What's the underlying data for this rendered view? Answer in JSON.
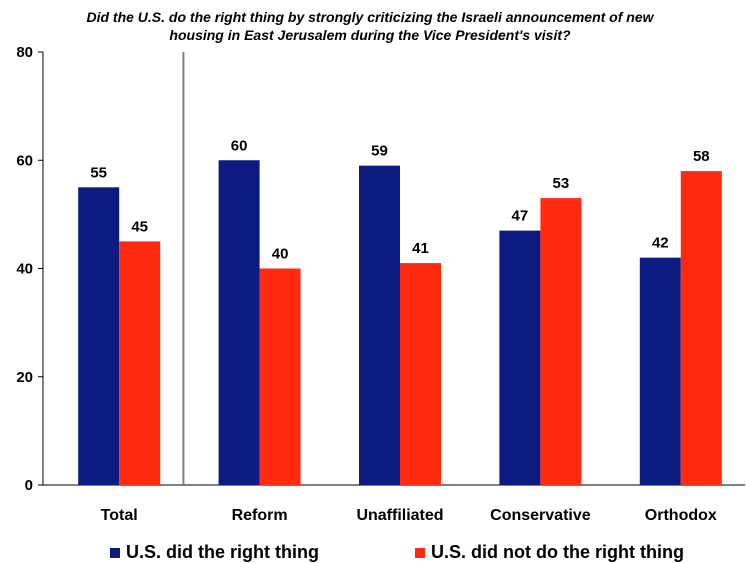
{
  "chart_data": {
    "type": "bar",
    "title_lines": [
      "Did the U.S. do the right thing by strongly criticizing the Israeli announcement of new",
      "housing in East Jerusalem during the Vice President's visit?"
    ],
    "categories": [
      "Total",
      "Reform",
      "Unaffiliated",
      "Conservative",
      "Orthodox"
    ],
    "series": [
      {
        "name": "U.S. did the right thing",
        "values": [
          55,
          60,
          59,
          47,
          42
        ],
        "color": "#0d1a80"
      },
      {
        "name": "U.S. did not do the right thing",
        "values": [
          45,
          40,
          41,
          53,
          58
        ],
        "color": "#ff2a10"
      }
    ],
    "ylim": [
      0,
      80
    ],
    "yticks": [
      0,
      20,
      40,
      60,
      80
    ],
    "grid": false,
    "legend_position": "bottom"
  }
}
